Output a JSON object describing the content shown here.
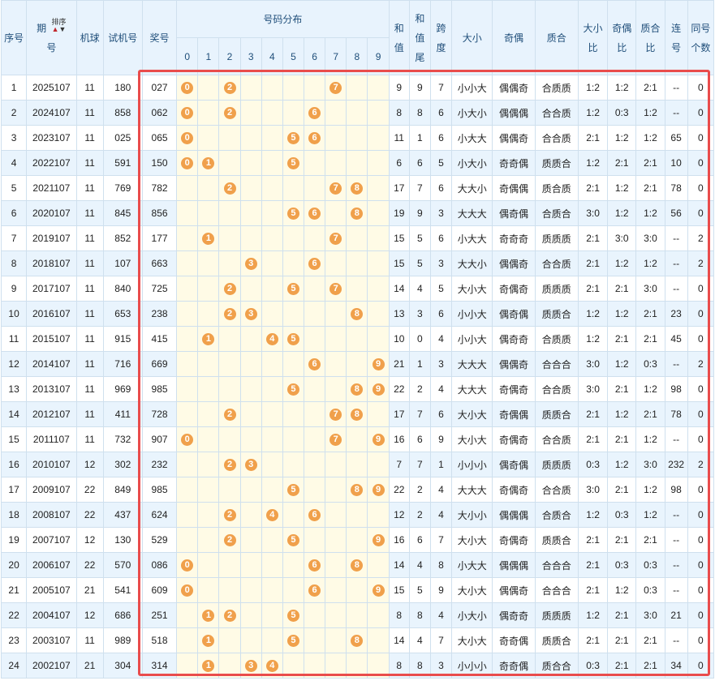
{
  "headers": {
    "seq": "序号",
    "period_a": "期",
    "period_b": "号",
    "sort_label": "排序",
    "machine": "机球",
    "trial": "试机号",
    "prize": "奖号",
    "dist": "号码分布",
    "digits": [
      "0",
      "1",
      "2",
      "3",
      "4",
      "5",
      "6",
      "7",
      "8",
      "9"
    ],
    "sum_a": "和",
    "sum_b": "值",
    "tail_a": "和",
    "tail_b": "值",
    "tail_c": "尾",
    "span_a": "跨",
    "span_b": "度",
    "size": "大小",
    "parity": "奇偶",
    "prime": "质合",
    "sizer_a": "大小",
    "sizer_b": "比",
    "parityr_a": "奇偶",
    "parityr_b": "比",
    "primer_a": "质合",
    "primer_b": "比",
    "consec_a": "连",
    "consec_b": "号",
    "same_a": "同号",
    "same_b": "个数"
  },
  "rows": [
    {
      "seq": "1",
      "period": "2025107",
      "machine": "11",
      "trial": "180",
      "prize": "027",
      "sum": "9",
      "tail": "9",
      "span": "7",
      "size": "小小大",
      "parity": "偶偶奇",
      "prime": "合质质",
      "sizer": "1:2",
      "parityr": "1:2",
      "primer": "2:1",
      "consec": "--",
      "same": "0"
    },
    {
      "seq": "2",
      "period": "2024107",
      "machine": "11",
      "trial": "858",
      "prize": "062",
      "sum": "8",
      "tail": "8",
      "span": "6",
      "size": "小大小",
      "parity": "偶偶偶",
      "prime": "合合质",
      "sizer": "1:2",
      "parityr": "0:3",
      "primer": "1:2",
      "consec": "--",
      "same": "0"
    },
    {
      "seq": "3",
      "period": "2023107",
      "machine": "11",
      "trial": "025",
      "prize": "065",
      "sum": "11",
      "tail": "1",
      "span": "6",
      "size": "小大大",
      "parity": "偶偶奇",
      "prime": "合合质",
      "sizer": "2:1",
      "parityr": "1:2",
      "primer": "1:2",
      "consec": "65",
      "same": "0"
    },
    {
      "seq": "4",
      "period": "2022107",
      "machine": "11",
      "trial": "591",
      "prize": "150",
      "sum": "6",
      "tail": "6",
      "span": "5",
      "size": "小大小",
      "parity": "奇奇偶",
      "prime": "质质合",
      "sizer": "1:2",
      "parityr": "2:1",
      "primer": "2:1",
      "consec": "10",
      "same": "0"
    },
    {
      "seq": "5",
      "period": "2021107",
      "machine": "11",
      "trial": "769",
      "prize": "782",
      "sum": "17",
      "tail": "7",
      "span": "6",
      "size": "大大小",
      "parity": "奇偶偶",
      "prime": "质合质",
      "sizer": "2:1",
      "parityr": "1:2",
      "primer": "2:1",
      "consec": "78",
      "same": "0"
    },
    {
      "seq": "6",
      "period": "2020107",
      "machine": "11",
      "trial": "845",
      "prize": "856",
      "sum": "19",
      "tail": "9",
      "span": "3",
      "size": "大大大",
      "parity": "偶奇偶",
      "prime": "合质合",
      "sizer": "3:0",
      "parityr": "1:2",
      "primer": "1:2",
      "consec": "56",
      "same": "0"
    },
    {
      "seq": "7",
      "period": "2019107",
      "machine": "11",
      "trial": "852",
      "prize": "177",
      "sum": "15",
      "tail": "5",
      "span": "6",
      "size": "小大大",
      "parity": "奇奇奇",
      "prime": "质质质",
      "sizer": "2:1",
      "parityr": "3:0",
      "primer": "3:0",
      "consec": "--",
      "same": "2"
    },
    {
      "seq": "8",
      "period": "2018107",
      "machine": "11",
      "trial": "107",
      "prize": "663",
      "sum": "15",
      "tail": "5",
      "span": "3",
      "size": "大大小",
      "parity": "偶偶奇",
      "prime": "合合质",
      "sizer": "2:1",
      "parityr": "1:2",
      "primer": "1:2",
      "consec": "--",
      "same": "2"
    },
    {
      "seq": "9",
      "period": "2017107",
      "machine": "11",
      "trial": "840",
      "prize": "725",
      "sum": "14",
      "tail": "4",
      "span": "5",
      "size": "大小大",
      "parity": "奇偶奇",
      "prime": "质质质",
      "sizer": "2:1",
      "parityr": "2:1",
      "primer": "3:0",
      "consec": "--",
      "same": "0"
    },
    {
      "seq": "10",
      "period": "2016107",
      "machine": "11",
      "trial": "653",
      "prize": "238",
      "sum": "13",
      "tail": "3",
      "span": "6",
      "size": "小小大",
      "parity": "偶奇偶",
      "prime": "质质合",
      "sizer": "1:2",
      "parityr": "1:2",
      "primer": "2:1",
      "consec": "23",
      "same": "0"
    },
    {
      "seq": "11",
      "period": "2015107",
      "machine": "11",
      "trial": "915",
      "prize": "415",
      "sum": "10",
      "tail": "0",
      "span": "4",
      "size": "小小大",
      "parity": "偶奇奇",
      "prime": "合质质",
      "sizer": "1:2",
      "parityr": "2:1",
      "primer": "2:1",
      "consec": "45",
      "same": "0"
    },
    {
      "seq": "12",
      "period": "2014107",
      "machine": "11",
      "trial": "716",
      "prize": "669",
      "sum": "21",
      "tail": "1",
      "span": "3",
      "size": "大大大",
      "parity": "偶偶奇",
      "prime": "合合合",
      "sizer": "3:0",
      "parityr": "1:2",
      "primer": "0:3",
      "consec": "--",
      "same": "2"
    },
    {
      "seq": "13",
      "period": "2013107",
      "machine": "11",
      "trial": "969",
      "prize": "985",
      "sum": "22",
      "tail": "2",
      "span": "4",
      "size": "大大大",
      "parity": "奇偶奇",
      "prime": "合合质",
      "sizer": "3:0",
      "parityr": "2:1",
      "primer": "1:2",
      "consec": "98",
      "same": "0"
    },
    {
      "seq": "14",
      "period": "2012107",
      "machine": "11",
      "trial": "411",
      "prize": "728",
      "sum": "17",
      "tail": "7",
      "span": "6",
      "size": "大小大",
      "parity": "奇偶偶",
      "prime": "质质合",
      "sizer": "2:1",
      "parityr": "1:2",
      "primer": "2:1",
      "consec": "78",
      "same": "0"
    },
    {
      "seq": "15",
      "period": "2011107",
      "machine": "11",
      "trial": "732",
      "prize": "907",
      "sum": "16",
      "tail": "6",
      "span": "9",
      "size": "大小大",
      "parity": "奇偶奇",
      "prime": "合合质",
      "sizer": "2:1",
      "parityr": "2:1",
      "primer": "1:2",
      "consec": "--",
      "same": "0"
    },
    {
      "seq": "16",
      "period": "2010107",
      "machine": "12",
      "trial": "302",
      "prize": "232",
      "sum": "7",
      "tail": "7",
      "span": "1",
      "size": "小小小",
      "parity": "偶奇偶",
      "prime": "质质质",
      "sizer": "0:3",
      "parityr": "1:2",
      "primer": "3:0",
      "consec": "232",
      "same": "2"
    },
    {
      "seq": "17",
      "period": "2009107",
      "machine": "22",
      "trial": "849",
      "prize": "985",
      "sum": "22",
      "tail": "2",
      "span": "4",
      "size": "大大大",
      "parity": "奇偶奇",
      "prime": "合合质",
      "sizer": "3:0",
      "parityr": "2:1",
      "primer": "1:2",
      "consec": "98",
      "same": "0"
    },
    {
      "seq": "18",
      "period": "2008107",
      "machine": "22",
      "trial": "437",
      "prize": "624",
      "sum": "12",
      "tail": "2",
      "span": "4",
      "size": "大小小",
      "parity": "偶偶偶",
      "prime": "合质合",
      "sizer": "1:2",
      "parityr": "0:3",
      "primer": "1:2",
      "consec": "--",
      "same": "0"
    },
    {
      "seq": "19",
      "period": "2007107",
      "machine": "12",
      "trial": "130",
      "prize": "529",
      "sum": "16",
      "tail": "6",
      "span": "7",
      "size": "大小大",
      "parity": "奇偶奇",
      "prime": "质质合",
      "sizer": "2:1",
      "parityr": "2:1",
      "primer": "2:1",
      "consec": "--",
      "same": "0"
    },
    {
      "seq": "20",
      "period": "2006107",
      "machine": "22",
      "trial": "570",
      "prize": "086",
      "sum": "14",
      "tail": "4",
      "span": "8",
      "size": "小大大",
      "parity": "偶偶偶",
      "prime": "合合合",
      "sizer": "2:1",
      "parityr": "0:3",
      "primer": "0:3",
      "consec": "--",
      "same": "0"
    },
    {
      "seq": "21",
      "period": "2005107",
      "machine": "21",
      "trial": "541",
      "prize": "609",
      "sum": "15",
      "tail": "5",
      "span": "9",
      "size": "大小大",
      "parity": "偶偶奇",
      "prime": "合合合",
      "sizer": "2:1",
      "parityr": "1:2",
      "primer": "0:3",
      "consec": "--",
      "same": "0"
    },
    {
      "seq": "22",
      "period": "2004107",
      "machine": "12",
      "trial": "686",
      "prize": "251",
      "sum": "8",
      "tail": "8",
      "span": "4",
      "size": "小大小",
      "parity": "偶奇奇",
      "prime": "质质质",
      "sizer": "1:2",
      "parityr": "2:1",
      "primer": "3:0",
      "consec": "21",
      "same": "0"
    },
    {
      "seq": "23",
      "period": "2003107",
      "machine": "11",
      "trial": "989",
      "prize": "518",
      "sum": "14",
      "tail": "4",
      "span": "7",
      "size": "大小大",
      "parity": "奇奇偶",
      "prime": "质质合",
      "sizer": "2:1",
      "parityr": "2:1",
      "primer": "2:1",
      "consec": "--",
      "same": "0"
    },
    {
      "seq": "24",
      "period": "2002107",
      "machine": "21",
      "trial": "304",
      "prize": "314",
      "sum": "8",
      "tail": "8",
      "span": "3",
      "size": "小小小",
      "parity": "奇奇偶",
      "prime": "质合合",
      "sizer": "0:3",
      "parityr": "2:1",
      "primer": "2:1",
      "consec": "34",
      "same": "0"
    }
  ],
  "colors": {
    "ball": "#f0a04b",
    "frame": "#e94c4c",
    "header_bg": "#e8f3fd",
    "row_alt_bg": "#e9f4fd",
    "dist_bg": "#fffbe6"
  }
}
